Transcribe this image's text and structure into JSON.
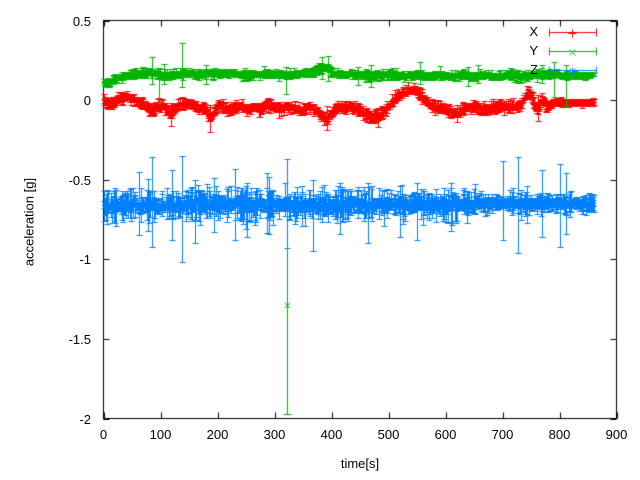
{
  "figure": {
    "background": "#ffffff",
    "axis_color": "#000000"
  },
  "chart_data": {
    "type": "scatter",
    "style": "errorbars",
    "title": "",
    "xlabel": "time[s]",
    "ylabel": "acceleration [g]",
    "xlim": [
      0,
      900
    ],
    "ylim": [
      -2,
      0.5
    ],
    "grid": false,
    "xticks": {
      "values": [
        0,
        100,
        200,
        300,
        400,
        500,
        600,
        700,
        800,
        900
      ],
      "labels": [
        "0",
        "100",
        "200",
        "300",
        "400",
        "500",
        "600",
        "700",
        "800",
        "900"
      ]
    },
    "yticks": {
      "values": [
        0.5,
        0,
        -0.5,
        -1,
        -1.5,
        -2
      ],
      "labels": [
        "0.5",
        "0",
        "-0.5",
        "-1",
        "-1.5",
        "-2"
      ]
    },
    "legend": {
      "position": "top-right-inside",
      "entries": [
        {
          "label": "X",
          "color": "#ff0000",
          "marker": "plus"
        },
        {
          "label": "Y",
          "color": "#00b400",
          "marker": "times"
        },
        {
          "label": "Z",
          "color": "#0080ff",
          "marker": "star"
        }
      ]
    },
    "series": [
      {
        "name": "X",
        "color": "#ff0000",
        "marker": "plus",
        "t_range": [
          0,
          860
        ],
        "step": 1,
        "jitter": 0.018,
        "err": [
          0.012,
          0.03
        ],
        "err_rare": [
          0.0,
          0.0
        ],
        "taper": {
          "t": 778,
          "scale": 0.5
        },
        "mean_path": [
          [
            0,
            0.0
          ],
          [
            12,
            -0.03
          ],
          [
            25,
            0.01
          ],
          [
            40,
            0.02
          ],
          [
            55,
            0.0
          ],
          [
            70,
            -0.02
          ],
          [
            86,
            -0.08
          ],
          [
            95,
            -0.03
          ],
          [
            105,
            -0.04
          ],
          [
            118,
            -0.09
          ],
          [
            128,
            -0.04
          ],
          [
            140,
            -0.02
          ],
          [
            155,
            -0.03
          ],
          [
            168,
            -0.05
          ],
          [
            178,
            -0.04
          ],
          [
            186,
            -0.12
          ],
          [
            196,
            -0.05
          ],
          [
            205,
            -0.03
          ],
          [
            218,
            -0.07
          ],
          [
            228,
            -0.05
          ],
          [
            240,
            -0.03
          ],
          [
            252,
            -0.06
          ],
          [
            262,
            -0.04
          ],
          [
            275,
            -0.06
          ],
          [
            288,
            -0.03
          ],
          [
            300,
            -0.04
          ],
          [
            312,
            -0.06
          ],
          [
            322,
            -0.04
          ],
          [
            335,
            -0.05
          ],
          [
            348,
            -0.07
          ],
          [
            358,
            -0.04
          ],
          [
            368,
            -0.05
          ],
          [
            380,
            -0.09
          ],
          [
            392,
            -0.11
          ],
          [
            400,
            -0.08
          ],
          [
            410,
            -0.04
          ],
          [
            420,
            -0.05
          ],
          [
            432,
            -0.04
          ],
          [
            445,
            -0.05
          ],
          [
            458,
            -0.09
          ],
          [
            470,
            -0.11
          ],
          [
            482,
            -0.1
          ],
          [
            495,
            -0.06
          ],
          [
            505,
            -0.02
          ],
          [
            518,
            0.03
          ],
          [
            532,
            0.06
          ],
          [
            545,
            0.07
          ],
          [
            558,
            0.03
          ],
          [
            570,
            -0.02
          ],
          [
            582,
            -0.04
          ],
          [
            595,
            -0.05
          ],
          [
            608,
            -0.07
          ],
          [
            620,
            -0.08
          ],
          [
            632,
            -0.05
          ],
          [
            645,
            -0.04
          ],
          [
            658,
            -0.05
          ],
          [
            672,
            -0.06
          ],
          [
            685,
            -0.04
          ],
          [
            698,
            -0.03
          ],
          [
            710,
            -0.05
          ],
          [
            722,
            -0.04
          ],
          [
            733,
            -0.02
          ],
          [
            742,
            0.04
          ],
          [
            748,
            0.05
          ],
          [
            756,
            -0.03
          ],
          [
            763,
            -0.06
          ],
          [
            770,
            0.01
          ],
          [
            778,
            -0.05
          ],
          [
            786,
            -0.02
          ],
          [
            795,
            -0.01
          ],
          [
            810,
            -0.02
          ],
          [
            825,
            -0.01
          ],
          [
            840,
            -0.02
          ],
          [
            860,
            -0.01
          ]
        ],
        "spikes": [
          {
            "t": 118,
            "hi": -0.02,
            "lo": -0.16
          },
          {
            "t": 186,
            "hi": -0.03,
            "lo": -0.2
          },
          {
            "t": 392,
            "hi": -0.04,
            "lo": -0.19
          },
          {
            "t": 482,
            "hi": -0.05,
            "lo": -0.17
          },
          {
            "t": 620,
            "hi": -0.03,
            "lo": -0.14
          },
          {
            "t": 763,
            "hi": 0.03,
            "lo": -0.13
          }
        ],
        "outliers": []
      },
      {
        "name": "Y",
        "color": "#00b400",
        "marker": "times",
        "t_range": [
          0,
          860
        ],
        "step": 1,
        "jitter": 0.014,
        "err": [
          0.01,
          0.025
        ],
        "err_rare": [
          0.01,
          0.05
        ],
        "taper": {
          "t": 795,
          "scale": 0.7
        },
        "mean_path": [
          [
            0,
            0.11
          ],
          [
            8,
            0.11
          ],
          [
            18,
            0.13
          ],
          [
            30,
            0.15
          ],
          [
            45,
            0.16
          ],
          [
            60,
            0.17
          ],
          [
            80,
            0.18
          ],
          [
            90,
            0.17
          ],
          [
            105,
            0.16
          ],
          [
            120,
            0.16
          ],
          [
            137,
            0.17
          ],
          [
            155,
            0.17
          ],
          [
            170,
            0.16
          ],
          [
            190,
            0.17
          ],
          [
            210,
            0.16
          ],
          [
            230,
            0.17
          ],
          [
            250,
            0.16
          ],
          [
            270,
            0.16
          ],
          [
            290,
            0.17
          ],
          [
            310,
            0.16
          ],
          [
            330,
            0.16
          ],
          [
            350,
            0.17
          ],
          [
            365,
            0.17
          ],
          [
            380,
            0.2
          ],
          [
            390,
            0.21
          ],
          [
            400,
            0.18
          ],
          [
            415,
            0.16
          ],
          [
            430,
            0.17
          ],
          [
            450,
            0.16
          ],
          [
            470,
            0.15
          ],
          [
            490,
            0.16
          ],
          [
            510,
            0.16
          ],
          [
            530,
            0.15
          ],
          [
            550,
            0.16
          ],
          [
            570,
            0.15
          ],
          [
            590,
            0.16
          ],
          [
            610,
            0.15
          ],
          [
            630,
            0.16
          ],
          [
            650,
            0.15
          ],
          [
            670,
            0.16
          ],
          [
            690,
            0.15
          ],
          [
            710,
            0.16
          ],
          [
            730,
            0.15
          ],
          [
            750,
            0.16
          ],
          [
            770,
            0.16
          ],
          [
            790,
            0.17
          ],
          [
            805,
            0.15
          ],
          [
            820,
            0.16
          ],
          [
            840,
            0.15
          ],
          [
            860,
            0.16
          ]
        ],
        "spikes": [
          {
            "t": 85,
            "hi": 0.27,
            "lo": 0.1
          },
          {
            "t": 97,
            "hi": 0.2,
            "lo": -0.02
          },
          {
            "t": 137,
            "hi": 0.36,
            "lo": 0.08
          },
          {
            "t": 320,
            "hi": 0.21,
            "lo": 0.04
          },
          {
            "t": 383,
            "hi": 0.27,
            "lo": 0.13
          },
          {
            "t": 393,
            "hi": 0.28,
            "lo": 0.12
          },
          {
            "t": 470,
            "hi": 0.22,
            "lo": 0.08
          },
          {
            "t": 555,
            "hi": 0.24,
            "lo": 0.1
          },
          {
            "t": 640,
            "hi": 0.21,
            "lo": 0.09
          },
          {
            "t": 770,
            "hi": 0.22,
            "lo": 0.11
          },
          {
            "t": 790,
            "hi": 0.24,
            "lo": 0.02
          },
          {
            "t": 812,
            "hi": 0.22,
            "lo": -0.04
          }
        ],
        "outliers": [
          {
            "t": 322,
            "y": -1.29,
            "hi": -0.61,
            "lo": -1.97
          }
        ]
      },
      {
        "name": "Z",
        "color": "#0080ff",
        "marker": "star",
        "t_range": [
          0,
          860
        ],
        "step": 1,
        "jitter": 0.035,
        "err": [
          0.02,
          0.09
        ],
        "err_rare": [
          0.04,
          0.1
        ],
        "taper": {
          "t": 660,
          "scale": 0.6
        },
        "mean_path": [
          [
            0,
            -0.67
          ],
          [
            20,
            -0.66
          ],
          [
            50,
            -0.66
          ],
          [
            80,
            -0.65
          ],
          [
            110,
            -0.66
          ],
          [
            140,
            -0.66
          ],
          [
            170,
            -0.65
          ],
          [
            200,
            -0.66
          ],
          [
            230,
            -0.65
          ],
          [
            260,
            -0.66
          ],
          [
            290,
            -0.65
          ],
          [
            320,
            -0.66
          ],
          [
            350,
            -0.66
          ],
          [
            380,
            -0.65
          ],
          [
            410,
            -0.66
          ],
          [
            440,
            -0.65
          ],
          [
            470,
            -0.66
          ],
          [
            500,
            -0.65
          ],
          [
            530,
            -0.66
          ],
          [
            560,
            -0.65
          ],
          [
            590,
            -0.66
          ],
          [
            620,
            -0.65
          ],
          [
            650,
            -0.65
          ],
          [
            680,
            -0.65
          ],
          [
            710,
            -0.64
          ],
          [
            740,
            -0.65
          ],
          [
            770,
            -0.65
          ],
          [
            800,
            -0.65
          ],
          [
            830,
            -0.65
          ],
          [
            860,
            -0.65
          ]
        ],
        "spikes": [
          {
            "t": 62,
            "hi": -0.45,
            "lo": -0.85
          },
          {
            "t": 85,
            "hi": -0.36,
            "lo": -0.92
          },
          {
            "t": 120,
            "hi": -0.44,
            "lo": -0.88
          },
          {
            "t": 137,
            "hi": -0.35,
            "lo": -1.02
          },
          {
            "t": 160,
            "hi": -0.5,
            "lo": -0.9
          },
          {
            "t": 230,
            "hi": -0.43,
            "lo": -0.88
          },
          {
            "t": 252,
            "hi": -0.52,
            "lo": -0.86
          },
          {
            "t": 290,
            "hi": -0.48,
            "lo": -0.84
          },
          {
            "t": 322,
            "hi": -0.37,
            "lo": -0.93
          },
          {
            "t": 368,
            "hi": -0.5,
            "lo": -0.95
          },
          {
            "t": 415,
            "hi": -0.52,
            "lo": -0.84
          },
          {
            "t": 464,
            "hi": -0.52,
            "lo": -0.9
          },
          {
            "t": 520,
            "hi": -0.54,
            "lo": -0.86
          },
          {
            "t": 550,
            "hi": -0.52,
            "lo": -0.88
          },
          {
            "t": 610,
            "hi": -0.52,
            "lo": -0.82
          },
          {
            "t": 700,
            "hi": -0.38,
            "lo": -0.88
          },
          {
            "t": 728,
            "hi": -0.36,
            "lo": -0.96
          },
          {
            "t": 770,
            "hi": -0.44,
            "lo": -0.86
          },
          {
            "t": 800,
            "hi": -0.4,
            "lo": -0.92
          },
          {
            "t": 812,
            "hi": -0.46,
            "lo": -0.84
          }
        ],
        "outliers": []
      }
    ]
  }
}
